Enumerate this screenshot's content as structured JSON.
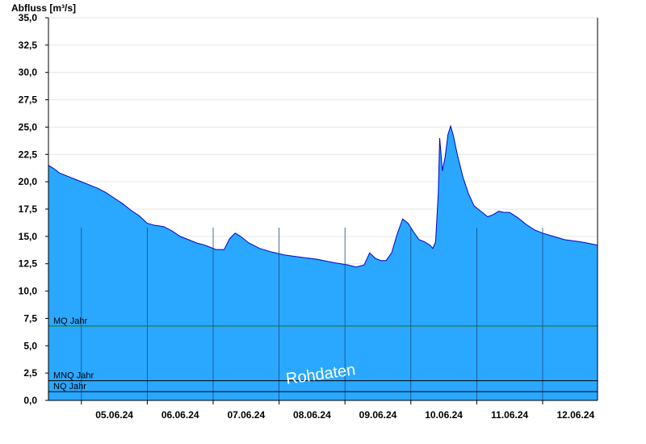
{
  "chart_data": {
    "type": "area",
    "ylabel": "Abfluss [m³/s]",
    "ylim": [
      0,
      35
    ],
    "yticks": [
      "0,0",
      "2,5",
      "5,0",
      "7,5",
      "10,0",
      "12,5",
      "15,0",
      "17,5",
      "20,0",
      "22,5",
      "25,0",
      "27,5",
      "30,0",
      "32,5",
      "35,0"
    ],
    "xlim": [
      "2024-06-04T12:00",
      "2024-06-12T20:00"
    ],
    "xticks": [
      {
        "date": "2024-06-05",
        "label": "05.06.24"
      },
      {
        "date": "2024-06-06",
        "label": "06.06.24"
      },
      {
        "date": "2024-06-07",
        "label": "07.06.24"
      },
      {
        "date": "2024-06-08",
        "label": "08.06.24"
      },
      {
        "date": "2024-06-09",
        "label": "09.06.24"
      },
      {
        "date": "2024-06-10",
        "label": "10.06.24"
      },
      {
        "date": "2024-06-11",
        "label": "11.06.24"
      },
      {
        "date": "2024-06-12",
        "label": "12.06.24"
      }
    ],
    "series": [
      {
        "color": "#2aa8ff",
        "line_color": "#0000cc",
        "points": [
          [
            "2024-06-04T12:00",
            21.5
          ],
          [
            "2024-06-04T14:00",
            21.2
          ],
          [
            "2024-06-04T16:00",
            20.8
          ],
          [
            "2024-06-04T20:00",
            20.4
          ],
          [
            "2024-06-05T00:00",
            20.0
          ],
          [
            "2024-06-05T03:00",
            19.7
          ],
          [
            "2024-06-05T06:00",
            19.4
          ],
          [
            "2024-06-05T09:00",
            19.0
          ],
          [
            "2024-06-05T12:00",
            18.5
          ],
          [
            "2024-06-05T15:00",
            18.0
          ],
          [
            "2024-06-05T18:00",
            17.4
          ],
          [
            "2024-06-05T21:00",
            16.9
          ],
          [
            "2024-06-06T00:00",
            16.2
          ],
          [
            "2024-06-06T03:00",
            16.0
          ],
          [
            "2024-06-06T06:00",
            15.9
          ],
          [
            "2024-06-06T09:00",
            15.5
          ],
          [
            "2024-06-06T12:00",
            15.0
          ],
          [
            "2024-06-06T15:00",
            14.7
          ],
          [
            "2024-06-06T18:00",
            14.4
          ],
          [
            "2024-06-06T21:00",
            14.2
          ],
          [
            "2024-06-07T01:00",
            13.8
          ],
          [
            "2024-06-07T04:00",
            13.8
          ],
          [
            "2024-06-07T06:00",
            14.8
          ],
          [
            "2024-06-07T08:00",
            15.3
          ],
          [
            "2024-06-07T10:00",
            15.0
          ],
          [
            "2024-06-07T13:00",
            14.4
          ],
          [
            "2024-06-07T17:00",
            13.9
          ],
          [
            "2024-06-07T21:00",
            13.6
          ],
          [
            "2024-06-08T02:00",
            13.3
          ],
          [
            "2024-06-08T08:00",
            13.1
          ],
          [
            "2024-06-08T14:00",
            12.9
          ],
          [
            "2024-06-08T20:00",
            12.6
          ],
          [
            "2024-06-09T01:00",
            12.4
          ],
          [
            "2024-06-09T04:00",
            12.2
          ],
          [
            "2024-06-09T07:00",
            12.4
          ],
          [
            "2024-06-09T09:00",
            13.5
          ],
          [
            "2024-06-09T11:00",
            13.0
          ],
          [
            "2024-06-09T13:00",
            12.8
          ],
          [
            "2024-06-09T15:00",
            12.8
          ],
          [
            "2024-06-09T17:00",
            13.5
          ],
          [
            "2024-06-09T19:00",
            15.2
          ],
          [
            "2024-06-09T21:00",
            16.6
          ],
          [
            "2024-06-09T23:00",
            16.2
          ],
          [
            "2024-06-10T01:00",
            15.4
          ],
          [
            "2024-06-10T03:00",
            14.7
          ],
          [
            "2024-06-10T05:00",
            14.5
          ],
          [
            "2024-06-10T07:00",
            14.2
          ],
          [
            "2024-06-10T08:00",
            13.9
          ],
          [
            "2024-06-10T09:00",
            14.5
          ],
          [
            "2024-06-10T10:00",
            19.0
          ],
          [
            "2024-06-10T10:30",
            24.0
          ],
          [
            "2024-06-10T11:30",
            21.0
          ],
          [
            "2024-06-10T12:30",
            22.3
          ],
          [
            "2024-06-10T13:30",
            24.3
          ],
          [
            "2024-06-10T14:30",
            25.1
          ],
          [
            "2024-06-10T15:30",
            24.2
          ],
          [
            "2024-06-10T17:00",
            22.4
          ],
          [
            "2024-06-10T19:00",
            20.4
          ],
          [
            "2024-06-10T21:00",
            18.9
          ],
          [
            "2024-06-10T23:00",
            17.8
          ],
          [
            "2024-06-11T02:00",
            17.2
          ],
          [
            "2024-06-11T04:00",
            16.8
          ],
          [
            "2024-06-11T06:00",
            17.0
          ],
          [
            "2024-06-11T08:00",
            17.3
          ],
          [
            "2024-06-11T10:00",
            17.2
          ],
          [
            "2024-06-11T12:00",
            17.2
          ],
          [
            "2024-06-11T15:00",
            16.7
          ],
          [
            "2024-06-11T18:00",
            16.1
          ],
          [
            "2024-06-11T21:00",
            15.6
          ],
          [
            "2024-06-12T00:00",
            15.3
          ],
          [
            "2024-06-12T04:00",
            15.0
          ],
          [
            "2024-06-12T08:00",
            14.7
          ],
          [
            "2024-06-12T14:00",
            14.5
          ],
          [
            "2024-06-12T18:00",
            14.3
          ],
          [
            "2024-06-12T20:00",
            14.2
          ]
        ]
      }
    ],
    "reference_lines": [
      {
        "label": "MQ Jahr",
        "value": 6.8,
        "color": "#1e6e1e"
      },
      {
        "label": "MNQ Jahr",
        "value": 1.8,
        "color": "#000000"
      },
      {
        "label": "NQ Jahr",
        "value": 0.8,
        "color": "#000000"
      }
    ],
    "watermark": "Rohdaten",
    "grid": true
  }
}
